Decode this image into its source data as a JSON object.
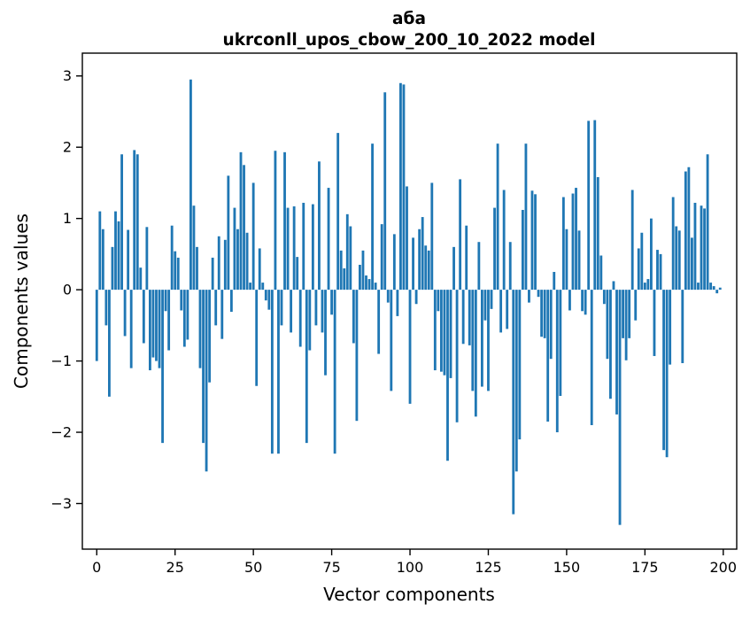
{
  "figure": {
    "title_line1": "аба",
    "title_line2": "ukrconll_upos_cbow_200_10_2022 model",
    "xlabel": "Vector components",
    "ylabel": "Components values"
  },
  "chart_data": {
    "type": "bar",
    "title": "аба\nukrconll_upos_cbow_200_10_2022 model",
    "xlabel": "Vector components",
    "ylabel": "Components values",
    "bar_color": "#1f77b4",
    "spine_color": "#000000",
    "grid": false,
    "legend": null,
    "n_components": 200,
    "xlim": [
      -4.6,
      204.3
    ],
    "ylim": [
      -3.64,
      3.32
    ],
    "x_ticks": [
      0,
      25,
      50,
      75,
      100,
      125,
      150,
      175,
      200
    ],
    "x_tick_labels": [
      "0",
      "25",
      "50",
      "75",
      "100",
      "125",
      "150",
      "175",
      "200"
    ],
    "y_ticks": [
      3,
      2,
      1,
      0,
      -1,
      -2,
      -3
    ],
    "y_tick_labels": [
      "3",
      "2",
      "1",
      "0",
      "−1",
      "−2",
      "−3"
    ],
    "values": [
      -1.0,
      1.1,
      0.85,
      -0.5,
      -1.5,
      0.6,
      1.1,
      0.96,
      1.9,
      -0.65,
      0.84,
      -1.1,
      1.96,
      1.9,
      0.31,
      -0.75,
      0.88,
      -1.13,
      -0.95,
      -1.0,
      -1.1,
      -2.15,
      -0.3,
      -0.85,
      0.9,
      0.54,
      0.45,
      -0.29,
      -0.8,
      -0.7,
      2.95,
      1.18,
      0.6,
      -1.1,
      -2.15,
      -2.55,
      -1.3,
      0.45,
      -0.5,
      0.75,
      -0.69,
      0.7,
      1.6,
      -0.31,
      1.15,
      0.85,
      1.93,
      1.75,
      0.8,
      0.1,
      1.5,
      -1.35,
      0.58,
      0.1,
      -0.15,
      -0.28,
      -2.3,
      1.95,
      -2.3,
      -0.5,
      1.93,
      1.15,
      -0.6,
      1.17,
      0.46,
      -0.8,
      1.22,
      -2.15,
      -0.85,
      1.2,
      -0.5,
      1.8,
      -0.6,
      -1.2,
      1.43,
      -0.35,
      -2.3,
      2.2,
      0.55,
      0.3,
      1.06,
      0.89,
      -0.75,
      -1.84,
      0.35,
      0.55,
      0.2,
      0.15,
      2.05,
      0.1,
      -0.9,
      0.92,
      2.77,
      -0.18,
      -1.42,
      0.78,
      -0.37,
      2.9,
      2.88,
      1.45,
      -1.6,
      0.73,
      -0.2,
      0.85,
      1.02,
      0.62,
      0.55,
      1.5,
      -1.13,
      -0.3,
      -1.15,
      -1.2,
      -2.4,
      -1.24,
      0.6,
      -1.86,
      1.55,
      -0.76,
      0.9,
      -0.78,
      -1.42,
      -1.78,
      0.67,
      -1.36,
      -0.43,
      -1.42,
      -0.27,
      1.15,
      2.05,
      -0.6,
      1.4,
      -0.55,
      0.67,
      -3.15,
      -2.55,
      -2.1,
      1.12,
      2.05,
      -0.18,
      1.39,
      1.34,
      -0.1,
      -0.66,
      -0.68,
      -1.85,
      -0.97,
      0.25,
      -2.0,
      -1.49,
      1.3,
      0.85,
      -0.29,
      1.35,
      1.43,
      0.83,
      -0.3,
      -0.35,
      2.37,
      -1.9,
      2.38,
      1.58,
      0.48,
      -0.2,
      -0.97,
      -1.53,
      0.12,
      -1.75,
      -3.3,
      -0.68,
      -0.99,
      -0.68,
      1.4,
      -0.43,
      0.58,
      0.8,
      0.1,
      0.15,
      1.0,
      -0.93,
      0.56,
      0.5,
      -2.25,
      -2.35,
      -1.05,
      1.3,
      0.89,
      0.83,
      -1.03,
      1.66,
      1.72,
      0.73,
      1.22,
      0.1,
      1.18,
      1.14,
      1.9,
      0.1,
      0.05,
      -0.05,
      0.03
    ]
  }
}
